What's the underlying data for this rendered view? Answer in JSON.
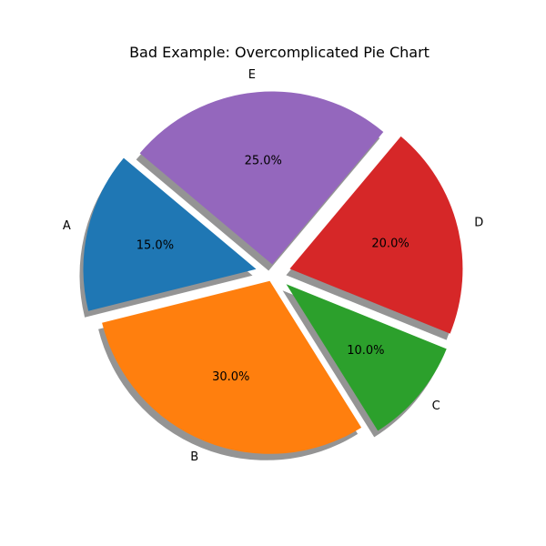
{
  "chart_data": {
    "type": "pie",
    "title": "Bad Example: Overcomplicated Pie Chart",
    "categories": [
      "A",
      "B",
      "C",
      "D",
      "E"
    ],
    "values": [
      15,
      30,
      10,
      20,
      25
    ],
    "percent_labels": [
      "15.0%",
      "30.0%",
      "10.0%",
      "20.0%",
      "25.0%"
    ],
    "explode": [
      0.1,
      0.05,
      0.1,
      0.1,
      0.05
    ],
    "start_angle_degrees": 140,
    "shadow": true,
    "colors": [
      "#1f77b4",
      "#ff7f0e",
      "#2ca02c",
      "#d62728",
      "#9467bd"
    ]
  }
}
